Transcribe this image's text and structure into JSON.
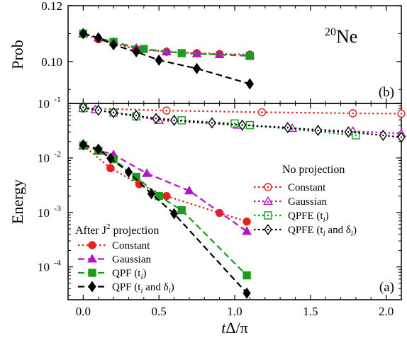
{
  "figure": {
    "nucleus_label_mass": "20",
    "nucleus_label_symbol": "Ne",
    "xlabel_parts": [
      "t",
      "Δ/π"
    ]
  },
  "colors": {
    "constant": "#e8201c",
    "gaussian": "#b414c8",
    "qpf_ti": "#1e9a1e",
    "qpf_ti_di": "#000000"
  },
  "chart_data": [
    {
      "type": "line",
      "panel_label": "(b)",
      "ylabel": "Prob",
      "xlim": [
        -0.1,
        2.1
      ],
      "ylim": [
        0.085,
        0.12
      ],
      "yticks": [
        0.1,
        0.12
      ],
      "ytick_labels": [
        "0.10",
        "0.12"
      ],
      "series": [
        {
          "key": "constant",
          "marker": "circle",
          "filled": true,
          "dash": "dot",
          "x": [
            0.0,
            0.1,
            0.2,
            0.35,
            0.55,
            0.75,
            0.9,
            1.1
          ],
          "y": [
            0.11,
            0.108,
            0.1065,
            0.1045,
            0.1035,
            0.103,
            0.1027,
            0.1025
          ]
        },
        {
          "key": "gaussian",
          "marker": "triangle",
          "filled": true,
          "dash": "dash",
          "x": [
            0.0,
            0.1,
            0.2,
            0.35,
            0.55,
            0.75,
            0.9,
            1.1
          ],
          "y": [
            0.11,
            0.1085,
            0.107,
            0.1048,
            0.1035,
            0.1028,
            0.1025,
            0.1022
          ]
        },
        {
          "key": "qpf_ti",
          "marker": "square",
          "filled": true,
          "dash": "dash",
          "x": [
            0.0,
            0.2,
            0.4,
            0.65,
            1.1
          ],
          "y": [
            0.11,
            0.107,
            0.1045,
            0.103,
            0.102
          ]
        },
        {
          "key": "qpf_ti_di",
          "marker": "diamond",
          "filled": true,
          "dash": "dash",
          "x": [
            0.0,
            0.1,
            0.2,
            0.35,
            0.5,
            0.75,
            1.1
          ],
          "y": [
            0.11,
            0.1085,
            0.106,
            0.1035,
            0.1005,
            0.0975,
            0.092
          ]
        }
      ]
    },
    {
      "type": "line",
      "panel_label": "(a)",
      "ylabel": "Energy",
      "yscale": "log",
      "xlim": [
        -0.1,
        2.1
      ],
      "ylim": [
        2.5e-05,
        0.1
      ],
      "xticks": [
        0.0,
        0.5,
        1.0,
        1.5,
        2.0
      ],
      "xtick_labels": [
        "0.0",
        "0.5",
        "1.0",
        "1.5",
        "2.0"
      ],
      "yticks_exponents": [
        -1,
        -2,
        -3,
        -4
      ],
      "ytick_base": "10",
      "legend_no_projection": {
        "title": "No projection",
        "entries": [
          {
            "key": "constant",
            "label": "Constant"
          },
          {
            "key": "gaussian",
            "label": "Gaussian"
          },
          {
            "key": "qpf_ti",
            "label": "QPFE (t",
            "sub": "i",
            "suffix": ")"
          },
          {
            "key": "qpf_ti_di",
            "label": "QPFE (t",
            "sub": "i",
            "mid": " and δ",
            "sub2": "i",
            "suffix": ")"
          }
        ]
      },
      "legend_after_projection": {
        "title_prefix": "After J",
        "title_sup": "2",
        "title_suffix": " projection",
        "entries": [
          {
            "key": "constant",
            "label": "Constant"
          },
          {
            "key": "gaussian",
            "label": "Gaussian"
          },
          {
            "key": "qpf_ti",
            "label": "QPF (t",
            "sub": "i",
            "suffix": ")"
          },
          {
            "key": "qpf_ti_di",
            "label": "QPF (t",
            "sub": "i",
            "mid": " and δ",
            "sub2": "i",
            "suffix": ")"
          }
        ]
      },
      "series_no_projection": [
        {
          "key": "constant",
          "marker": "circle",
          "filled": false,
          "dash": "dot",
          "x": [
            0.0,
            0.55,
            1.18,
            1.78,
            2.1
          ],
          "y": [
            0.082,
            0.074,
            0.069,
            0.066,
            0.065
          ]
        },
        {
          "key": "gaussian",
          "marker": "triangle",
          "filled": false,
          "dash": "dot",
          "x": [
            0.0,
            0.08,
            0.5,
            1.02,
            1.38,
            1.78,
            2.1
          ],
          "y": [
            0.082,
            0.077,
            0.049,
            0.04,
            0.035,
            0.031,
            0.028
          ]
        },
        {
          "key": "qpf_ti",
          "marker": "square",
          "filled": false,
          "dash": "dot",
          "x": [
            0.0,
            0.2,
            0.35,
            0.65,
            1.0,
            1.1,
            1.8
          ],
          "y": [
            0.082,
            0.068,
            0.058,
            0.049,
            0.043,
            0.04,
            0.026
          ]
        },
        {
          "key": "qpf_ti_di",
          "marker": "diamond",
          "filled": false,
          "dash": "dot",
          "x": [
            0.0,
            0.1,
            0.2,
            0.35,
            0.48,
            0.6,
            0.85,
            1.05,
            1.35,
            1.55,
            1.75,
            1.98,
            2.1
          ],
          "y": [
            0.085,
            0.075,
            0.068,
            0.06,
            0.053,
            0.049,
            0.044,
            0.04,
            0.036,
            0.032,
            0.03,
            0.026,
            0.024
          ]
        }
      ],
      "series_after_projection": [
        {
          "key": "constant",
          "marker": "circle",
          "filled": true,
          "dash": "dot",
          "x": [
            0.0,
            0.18,
            0.37,
            0.55,
            0.9,
            1.08
          ],
          "y": [
            0.017,
            0.0065,
            0.0033,
            0.002,
            0.00098,
            0.00068
          ]
        },
        {
          "key": "gaussian",
          "marker": "triangle",
          "filled": true,
          "dash": "dash",
          "x": [
            0.0,
            0.2,
            0.42,
            0.7,
            1.08
          ],
          "y": [
            0.0165,
            0.0115,
            0.0052,
            0.0025,
            0.00045
          ]
        },
        {
          "key": "qpf_ti",
          "marker": "square",
          "filled": true,
          "dash": "dash",
          "x": [
            0.0,
            0.1,
            0.2,
            0.35,
            0.5,
            0.65,
            1.08
          ],
          "y": [
            0.017,
            0.0135,
            0.0095,
            0.0045,
            0.002,
            0.0011,
            7e-05
          ]
        },
        {
          "key": "qpf_ti_di",
          "marker": "diamond",
          "filled": true,
          "dash": "dash",
          "x": [
            0.0,
            0.1,
            0.18,
            0.3,
            0.45,
            0.6,
            1.08
          ],
          "y": [
            0.0175,
            0.0145,
            0.0098,
            0.0055,
            0.0022,
            0.00095,
            3.3e-05
          ]
        }
      ]
    }
  ]
}
